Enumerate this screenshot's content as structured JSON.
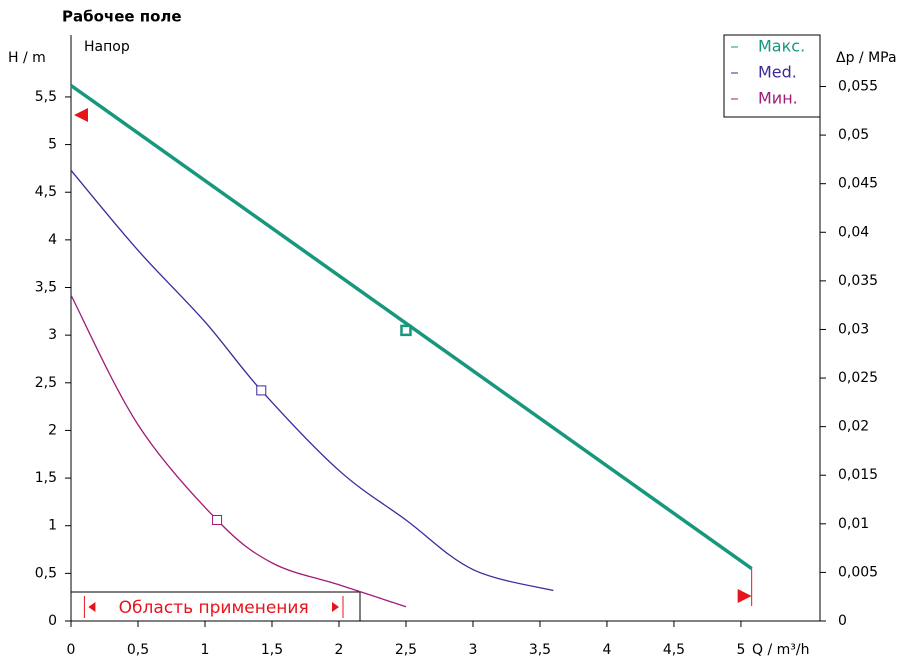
{
  "chart_data": {
    "type": "line",
    "title": "Рабочее поле",
    "ylabel": "H / m",
    "y2label": "Δp / MPa",
    "xlabel": "Q / m³/h",
    "annotation": "Напор",
    "range_label": "Область применения",
    "range_q": [
      0.1,
      2.03
    ],
    "h_max": 5.31,
    "q_max": 5.08,
    "q_max_color": "#e8141c",
    "xlim": [
      0,
      5.59
    ],
    "ylim": [
      0,
      6.15
    ],
    "y2lim": [
      0,
      0.0603
    ],
    "xticks": [
      0,
      {
        "value": 0.5,
        "label": "0,5"
      },
      1,
      {
        "value": 1.5,
        "label": "1,5"
      },
      2,
      {
        "value": 2.5,
        "label": "2,5"
      },
      3,
      {
        "value": 3.5,
        "label": "3,5"
      },
      4,
      {
        "value": 4.5,
        "label": "4,5"
      },
      5
    ],
    "yticks": [
      0,
      {
        "value": 0.5,
        "label": "0,5"
      },
      1,
      {
        "value": 1.5,
        "label": "1,5"
      },
      2,
      {
        "value": 2.5,
        "label": "2,5"
      },
      3,
      {
        "value": 3.5,
        "label": "3,5"
      },
      4,
      {
        "value": 4.5,
        "label": "4,5"
      },
      5,
      {
        "value": 5.5,
        "label": "5,5"
      }
    ],
    "y2ticks": [
      0,
      {
        "value": 0.005,
        "label": "0,005"
      },
      {
        "value": 0.01,
        "label": "0,01"
      },
      {
        "value": 0.015,
        "label": "0,015"
      },
      {
        "value": 0.02,
        "label": "0,02"
      },
      {
        "value": 0.025,
        "label": "0,025"
      },
      {
        "value": 0.03,
        "label": "0,03"
      },
      {
        "value": 0.035,
        "label": "0,035"
      },
      {
        "value": 0.04,
        "label": "0,04"
      },
      {
        "value": 0.045,
        "label": "0,045"
      },
      {
        "value": 0.05,
        "label": "0,05"
      },
      {
        "value": 0.055,
        "label": "0,055"
      }
    ],
    "series": [
      {
        "name": "Макс.",
        "color": "#17977c",
        "width": 3.5,
        "x": [
          0,
          5.08
        ],
        "values": [
          5.62,
          0.55
        ],
        "marker_x": 2.5,
        "marker_y": 3.05
      },
      {
        "name": "Med.",
        "color": "#3b2a9c",
        "width": 1.3,
        "x": [
          0,
          0.5,
          1.0,
          1.42,
          2.0,
          2.5,
          3.0,
          3.6
        ],
        "values": [
          4.73,
          3.89,
          3.14,
          2.42,
          1.58,
          1.06,
          0.54,
          0.32
        ],
        "marker_x": 1.42,
        "marker_y": 2.42
      },
      {
        "name": "Мин.",
        "color": "#a01c78",
        "width": 1.3,
        "x": [
          0,
          0.5,
          1.09,
          1.5,
          2.0,
          2.5
        ],
        "values": [
          3.42,
          2.06,
          1.06,
          0.61,
          0.38,
          0.15
        ],
        "marker_x": 1.09,
        "marker_y": 1.06
      }
    ]
  }
}
